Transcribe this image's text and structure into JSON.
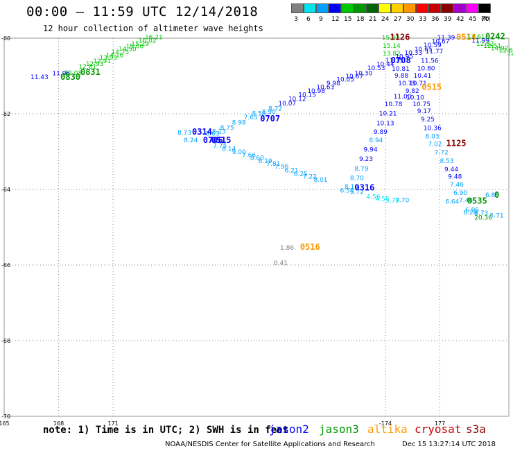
{
  "header": {
    "title": "00:00 – 11:59 UTC 12/14/2018",
    "subtitle": "12 hour collection of altimeter wave heights"
  },
  "legend": {
    "unit": "(ft)",
    "bins": [
      {
        "label": "3",
        "color": "#808080"
      },
      {
        "label": "6",
        "color": "#00e5ee"
      },
      {
        "label": "9",
        "color": "#00a0ff"
      },
      {
        "label": "12",
        "color": "#0000ff"
      },
      {
        "label": "15",
        "color": "#00c800"
      },
      {
        "label": "18",
        "color": "#009600"
      },
      {
        "label": "21",
        "color": "#006400"
      },
      {
        "label": "24",
        "color": "#ffff00"
      },
      {
        "label": "27",
        "color": "#ffd000"
      },
      {
        "label": "30",
        "color": "#ff9900"
      },
      {
        "label": "33",
        "color": "#ff0000"
      },
      {
        "label": "36",
        "color": "#c80000"
      },
      {
        "label": "39",
        "color": "#8b0000"
      },
      {
        "label": "42",
        "color": "#a000c8"
      },
      {
        "label": "45",
        "color": "#ff00ff"
      },
      {
        "label": "70",
        "color": "#000000"
      }
    ]
  },
  "map": {
    "lat_labels": [
      "-60",
      "-62",
      "-64",
      "-66",
      "-68",
      "-70"
    ],
    "lon_labels": [
      "165",
      "168",
      "171",
      "-174",
      "177"
    ],
    "points": [
      {
        "t": "16.21",
        "lon": 172.75,
        "lat": -60.03,
        "c": "#00c800"
      },
      {
        "t": "16.02",
        "lon": 172.4,
        "lat": -60.12,
        "c": "#00c800"
      },
      {
        "t": "15.29",
        "lon": 172.0,
        "lat": -60.2,
        "c": "#00c800"
      },
      {
        "t": "15.06",
        "lon": 171.7,
        "lat": -60.27,
        "c": "#00c800"
      },
      {
        "t": "14.50",
        "lon": 171.3,
        "lat": -60.34,
        "c": "#00c800"
      },
      {
        "t": "14.75",
        "lon": 170.9,
        "lat": -60.42,
        "c": "#00c800"
      },
      {
        "t": "14.16",
        "lon": 170.6,
        "lat": -60.5,
        "c": "#00c800"
      },
      {
        "t": "13.93",
        "lon": 170.25,
        "lat": -60.57,
        "c": "#00c800"
      },
      {
        "t": "12.91",
        "lon": 169.9,
        "lat": -60.66,
        "c": "#00c800"
      },
      {
        "t": "12.93",
        "lon": 169.5,
        "lat": -60.73,
        "c": "#00c800"
      },
      {
        "t": "12.81",
        "lon": 169.1,
        "lat": -60.81,
        "c": "#00c800"
      },
      {
        "t": "0831",
        "lon": 169.2,
        "lat": -60.97,
        "c": "#009600",
        "cls": "big"
      },
      {
        "t": "11.96",
        "lon": 167.65,
        "lat": -60.98,
        "c": "#0000ff"
      },
      {
        "t": "12.08",
        "lon": 168.3,
        "lat": -60.97,
        "c": "#00c800"
      },
      {
        "t": "0830",
        "lon": 168.1,
        "lat": -61.1,
        "c": "#009600",
        "cls": "big"
      },
      {
        "t": "11.43",
        "lon": 166.45,
        "lat": -61.08,
        "c": "#0000ff"
      },
      {
        "t": "15.92",
        "lon": 185.8,
        "lat": -60.05,
        "c": "#00c800"
      },
      {
        "t": "1126",
        "lon": 186.25,
        "lat": -60.05,
        "c": "#8b0000",
        "cls": "big"
      },
      {
        "t": "15.14",
        "lon": 185.85,
        "lat": -60.26,
        "c": "#00c800"
      },
      {
        "t": "13.82",
        "lon": 185.85,
        "lat": -60.46,
        "c": "#00c800"
      },
      {
        "t": "11.35",
        "lon": 186.0,
        "lat": -60.64,
        "c": "#0000ff"
      },
      {
        "t": "10.95",
        "lon": 186.55,
        "lat": -60.54,
        "c": "#0000ff"
      },
      {
        "t": "10.33",
        "lon": 187.05,
        "lat": -60.44,
        "c": "#0000ff"
      },
      {
        "t": "10.65",
        "lon": 187.6,
        "lat": -60.35,
        "c": "#0000ff"
      },
      {
        "t": "10.59",
        "lon": 188.1,
        "lat": -60.24,
        "c": "#0000ff"
      },
      {
        "t": "11.39",
        "lon": 188.85,
        "lat": -60.04,
        "c": "#0000ff"
      },
      {
        "t": "10.67",
        "lon": 188.55,
        "lat": -60.14,
        "c": "#0000ff"
      },
      {
        "t": "11.77",
        "lon": 188.2,
        "lat": -60.4,
        "c": "#0000ff"
      },
      {
        "t": "0514",
        "lon": 189.9,
        "lat": -60.05,
        "c": "#ff9900",
        "cls": "big"
      },
      {
        "t": "13.61",
        "lon": 190.5,
        "lat": -60.02,
        "c": "#00c800"
      },
      {
        "t": "11.99",
        "lon": 190.75,
        "lat": -60.12,
        "c": "#0000ff"
      },
      {
        "t": "0242",
        "lon": 191.5,
        "lat": -60.03,
        "c": "#009600",
        "cls": "big"
      },
      {
        "t": "12.82",
        "lon": 191.0,
        "lat": -60.2,
        "c": "#00c800"
      },
      {
        "t": "12.51",
        "lon": 191.4,
        "lat": -60.26,
        "c": "#00c800"
      },
      {
        "t": "14.92",
        "lon": 191.8,
        "lat": -60.32,
        "c": "#00c800"
      },
      {
        "t": "12.62",
        "lon": 192.25,
        "lat": -60.38,
        "c": "#00c800"
      },
      {
        "t": "12.15",
        "lon": 192.7,
        "lat": -60.45,
        "c": "#00c800"
      },
      {
        "t": "11.56",
        "lon": 187.95,
        "lat": -60.65,
        "c": "#0000ff"
      },
      {
        "t": "10.80",
        "lon": 187.75,
        "lat": -60.85,
        "c": "#0000ff"
      },
      {
        "t": "10.41",
        "lon": 187.55,
        "lat": -61.05,
        "c": "#0000ff"
      },
      {
        "t": "10.71",
        "lon": 187.3,
        "lat": -61.25,
        "c": "#0000ff"
      },
      {
        "t": "0515",
        "lon": 188.0,
        "lat": -61.37,
        "c": "#ff9900",
        "cls": "big"
      },
      {
        "t": "9.82",
        "lon": 187.1,
        "lat": -61.45,
        "c": "#0000ff"
      },
      {
        "t": "10.10",
        "lon": 187.15,
        "lat": -61.62,
        "c": "#0000ff"
      },
      {
        "t": "10.75",
        "lon": 187.5,
        "lat": -61.8,
        "c": "#0000ff"
      },
      {
        "t": "9.17",
        "lon": 187.75,
        "lat": -61.98,
        "c": "#0000ff"
      },
      {
        "t": "9.25",
        "lon": 187.95,
        "lat": -62.2,
        "c": "#0000ff"
      },
      {
        "t": "10.36",
        "lon": 188.1,
        "lat": -62.43,
        "c": "#0000ff"
      },
      {
        "t": "8.03",
        "lon": 188.2,
        "lat": -62.65,
        "c": "#00a0ff"
      },
      {
        "t": "7.02",
        "lon": 188.35,
        "lat": -62.85,
        "c": "#00a0ff"
      },
      {
        "t": "1125",
        "lon": 189.35,
        "lat": -62.85,
        "c": "#8b0000",
        "cls": "big"
      },
      {
        "t": "7.72",
        "lon": 188.7,
        "lat": -63.07,
        "c": "#00a0ff"
      },
      {
        "t": "8.53",
        "lon": 189.0,
        "lat": -63.3,
        "c": "#00a0ff"
      },
      {
        "t": "9.44",
        "lon": 189.25,
        "lat": -63.52,
        "c": "#0000ff"
      },
      {
        "t": "9.48",
        "lon": 189.45,
        "lat": -63.72,
        "c": "#0000ff"
      },
      {
        "t": "7.46",
        "lon": 189.55,
        "lat": -63.93,
        "c": "#00a0ff"
      },
      {
        "t": "6.90",
        "lon": 189.75,
        "lat": -64.15,
        "c": "#00a0ff"
      },
      {
        "t": "7.46",
        "lon": 190.05,
        "lat": -64.34,
        "c": "#00a0ff"
      },
      {
        "t": "6.64",
        "lon": 189.3,
        "lat": -64.38,
        "c": "#00a0ff"
      },
      {
        "t": "0535",
        "lon": 190.5,
        "lat": -64.38,
        "c": "#009600",
        "cls": "big"
      },
      {
        "t": "6.95",
        "lon": 190.4,
        "lat": -64.6,
        "c": "#00a0ff"
      },
      {
        "t": "6.20",
        "lon": 190.3,
        "lat": -64.66,
        "c": "#00a0ff"
      },
      {
        "t": "6.73",
        "lon": 190.9,
        "lat": -64.68,
        "c": "#00a0ff"
      },
      {
        "t": "20.36",
        "lon": 190.9,
        "lat": -64.8,
        "c": "#009600"
      },
      {
        "t": "5.71",
        "lon": 191.75,
        "lat": -64.74,
        "c": "#00a0ff"
      },
      {
        "t": "6.80",
        "lon": 191.5,
        "lat": -64.2,
        "c": "#00a0ff"
      },
      {
        "t": "0",
        "lon": 192.0,
        "lat": -64.22,
        "c": "#009600",
        "cls": "big"
      },
      {
        "t": "7.70",
        "lon": 186.55,
        "lat": -64.34,
        "c": "#00a0ff"
      },
      {
        "t": "10.78",
        "lon": 185.95,
        "lat": -61.8,
        "c": "#0000ff"
      },
      {
        "t": "11.00",
        "lon": 186.45,
        "lat": -61.6,
        "c": "#0000ff"
      },
      {
        "t": "10.75",
        "lon": 186.7,
        "lat": -61.25,
        "c": "#0000ff"
      },
      {
        "t": "9.88",
        "lon": 186.5,
        "lat": -61.05,
        "c": "#0000ff"
      },
      {
        "t": "10.81",
        "lon": 186.35,
        "lat": -60.86,
        "c": "#0000ff"
      },
      {
        "t": "0708",
        "lon": 186.3,
        "lat": -60.66,
        "c": "#0000ff",
        "cls": "big"
      },
      {
        "t": "10.21",
        "lon": 185.65,
        "lat": -62.05,
        "c": "#0000ff"
      },
      {
        "t": "10.13",
        "lon": 185.5,
        "lat": -62.3,
        "c": "#0000ff"
      },
      {
        "t": "9.89",
        "lon": 185.35,
        "lat": -62.53,
        "c": "#0000ff"
      },
      {
        "t": "8.94",
        "lon": 185.1,
        "lat": -62.75,
        "c": "#00a0ff"
      },
      {
        "t": "9.94",
        "lon": 184.8,
        "lat": -63.0,
        "c": "#0000ff"
      },
      {
        "t": "9.23",
        "lon": 184.55,
        "lat": -63.25,
        "c": "#0000ff"
      },
      {
        "t": "8.79",
        "lon": 184.3,
        "lat": -63.5,
        "c": "#00a0ff"
      },
      {
        "t": "8.70",
        "lon": 184.05,
        "lat": -63.75,
        "c": "#00a0ff"
      },
      {
        "t": "8.10",
        "lon": 183.75,
        "lat": -63.98,
        "c": "#00a0ff"
      },
      {
        "t": "6.58",
        "lon": 183.5,
        "lat": -64.08,
        "c": "#00a0ff"
      },
      {
        "t": "5.72",
        "lon": 184.05,
        "lat": -64.12,
        "c": "#00a0ff"
      },
      {
        "t": "0316",
        "lon": 184.3,
        "lat": -64.03,
        "c": "#0000ff",
        "cls": "big"
      },
      {
        "t": "4.56",
        "lon": 184.95,
        "lat": -64.25,
        "c": "#00e5ee"
      },
      {
        "t": "4.55",
        "lon": 185.45,
        "lat": -64.3,
        "c": "#00e5ee"
      },
      {
        "t": "5.79",
        "lon": 186.0,
        "lat": -64.35,
        "c": "#00e5ee"
      },
      {
        "t": "10.44",
        "lon": 185.5,
        "lat": -60.74,
        "c": "#0000ff"
      },
      {
        "t": "10.53",
        "lon": 185.0,
        "lat": -60.84,
        "c": "#0000ff"
      },
      {
        "t": "10.30",
        "lon": 184.3,
        "lat": -60.98,
        "c": "#0000ff"
      },
      {
        "t": "10.67",
        "lon": 183.8,
        "lat": -61.06,
        "c": "#0000ff"
      },
      {
        "t": "10.05",
        "lon": 183.3,
        "lat": -61.15,
        "c": "#0000ff"
      },
      {
        "t": "9.98",
        "lon": 182.75,
        "lat": -61.25,
        "c": "#0000ff"
      },
      {
        "t": "10.63",
        "lon": 182.2,
        "lat": -61.35,
        "c": "#0000ff"
      },
      {
        "t": "10.98",
        "lon": 181.7,
        "lat": -61.45,
        "c": "#0000ff"
      },
      {
        "t": "10.15",
        "lon": 181.2,
        "lat": -61.55,
        "c": "#0000ff"
      },
      {
        "t": "10.12",
        "lon": 180.65,
        "lat": -61.66,
        "c": "#0000ff"
      },
      {
        "t": "10.07",
        "lon": 180.1,
        "lat": -61.78,
        "c": "#0000ff"
      },
      {
        "t": "8.72",
        "lon": 179.55,
        "lat": -61.92,
        "c": "#00a0ff"
      },
      {
        "t": "8.90",
        "lon": 179.2,
        "lat": -62.0,
        "c": "#00a0ff"
      },
      {
        "t": "0707",
        "lon": 179.1,
        "lat": -62.2,
        "c": "#0000ff",
        "cls": "big"
      },
      {
        "t": "8.58",
        "lon": 178.65,
        "lat": -62.05,
        "c": "#00a0ff"
      },
      {
        "t": "7.65",
        "lon": 178.2,
        "lat": -62.15,
        "c": "#00a0ff"
      },
      {
        "t": "8.98",
        "lon": 177.55,
        "lat": -62.28,
        "c": "#00a0ff"
      },
      {
        "t": "8.75",
        "lon": 176.9,
        "lat": -62.42,
        "c": "#00a0ff"
      },
      {
        "t": "8.13",
        "lon": 176.45,
        "lat": -62.52,
        "c": "#00a0ff"
      },
      {
        "t": "8.63",
        "lon": 176.1,
        "lat": -62.58,
        "c": "#00a0ff"
      },
      {
        "t": "8.73",
        "lon": 174.55,
        "lat": -62.55,
        "c": "#00a0ff"
      },
      {
        "t": "0314",
        "lon": 175.35,
        "lat": -62.55,
        "c": "#0000ff",
        "cls": "big"
      },
      {
        "t": "8.24",
        "lon": 174.9,
        "lat": -62.75,
        "c": "#00a0ff"
      },
      {
        "t": "0706",
        "lon": 175.95,
        "lat": -62.77,
        "c": "#0000ff",
        "cls": "big"
      },
      {
        "t": "0515",
        "lon": 176.4,
        "lat": -62.77,
        "c": "#0000ff",
        "cls": "big"
      },
      {
        "t": "7.75",
        "lon": 176.5,
        "lat": -62.9,
        "c": "#00a0ff"
      },
      {
        "t": "8.14",
        "lon": 177.0,
        "lat": -62.98,
        "c": "#00a0ff"
      },
      {
        "t": "9.00",
        "lon": 177.55,
        "lat": -63.06,
        "c": "#00a0ff"
      },
      {
        "t": "7.66",
        "lon": 178.1,
        "lat": -63.15,
        "c": "#00a0ff"
      },
      {
        "t": "8.60",
        "lon": 178.55,
        "lat": -63.22,
        "c": "#00a0ff"
      },
      {
        "t": "6.19",
        "lon": 179.0,
        "lat": -63.3,
        "c": "#00a0ff"
      },
      {
        "t": "7.81",
        "lon": 179.45,
        "lat": -63.38,
        "c": "#00a0ff"
      },
      {
        "t": "7.96",
        "lon": 179.9,
        "lat": -63.45,
        "c": "#00a0ff"
      },
      {
        "t": "6.21",
        "lon": 180.45,
        "lat": -63.55,
        "c": "#00a0ff"
      },
      {
        "t": "6.25",
        "lon": 180.95,
        "lat": -63.64,
        "c": "#00a0ff"
      },
      {
        "t": "7.22",
        "lon": 181.45,
        "lat": -63.72,
        "c": "#00a0ff"
      },
      {
        "t": "8.01",
        "lon": 182.05,
        "lat": -63.8,
        "c": "#00a0ff"
      },
      {
        "t": "1.86",
        "lon": 180.2,
        "lat": -65.6,
        "c": "#808080"
      },
      {
        "t": "0516",
        "lon": 181.3,
        "lat": -65.6,
        "c": "#ff9900",
        "cls": "big"
      },
      {
        "t": "0.41",
        "lon": 179.85,
        "lat": -66.0,
        "c": "#808080"
      }
    ]
  },
  "footer": {
    "note": "note: 1) Time is in UTC; 2) SWH is in feet",
    "satellites": [
      {
        "name": "jason2",
        "color": "#0000ff"
      },
      {
        "name": "jason3",
        "color": "#009600"
      },
      {
        "name": "altika",
        "color": "#ff9900"
      },
      {
        "name": "cryosat",
        "color": "#c80000"
      },
      {
        "name": "s3a",
        "color": "#8b0000"
      }
    ],
    "credit": "NOAA/NESDIS Center for Satellite Applications and Research",
    "timestamp": "Dec 15 13:27:14 UTC 2018"
  }
}
